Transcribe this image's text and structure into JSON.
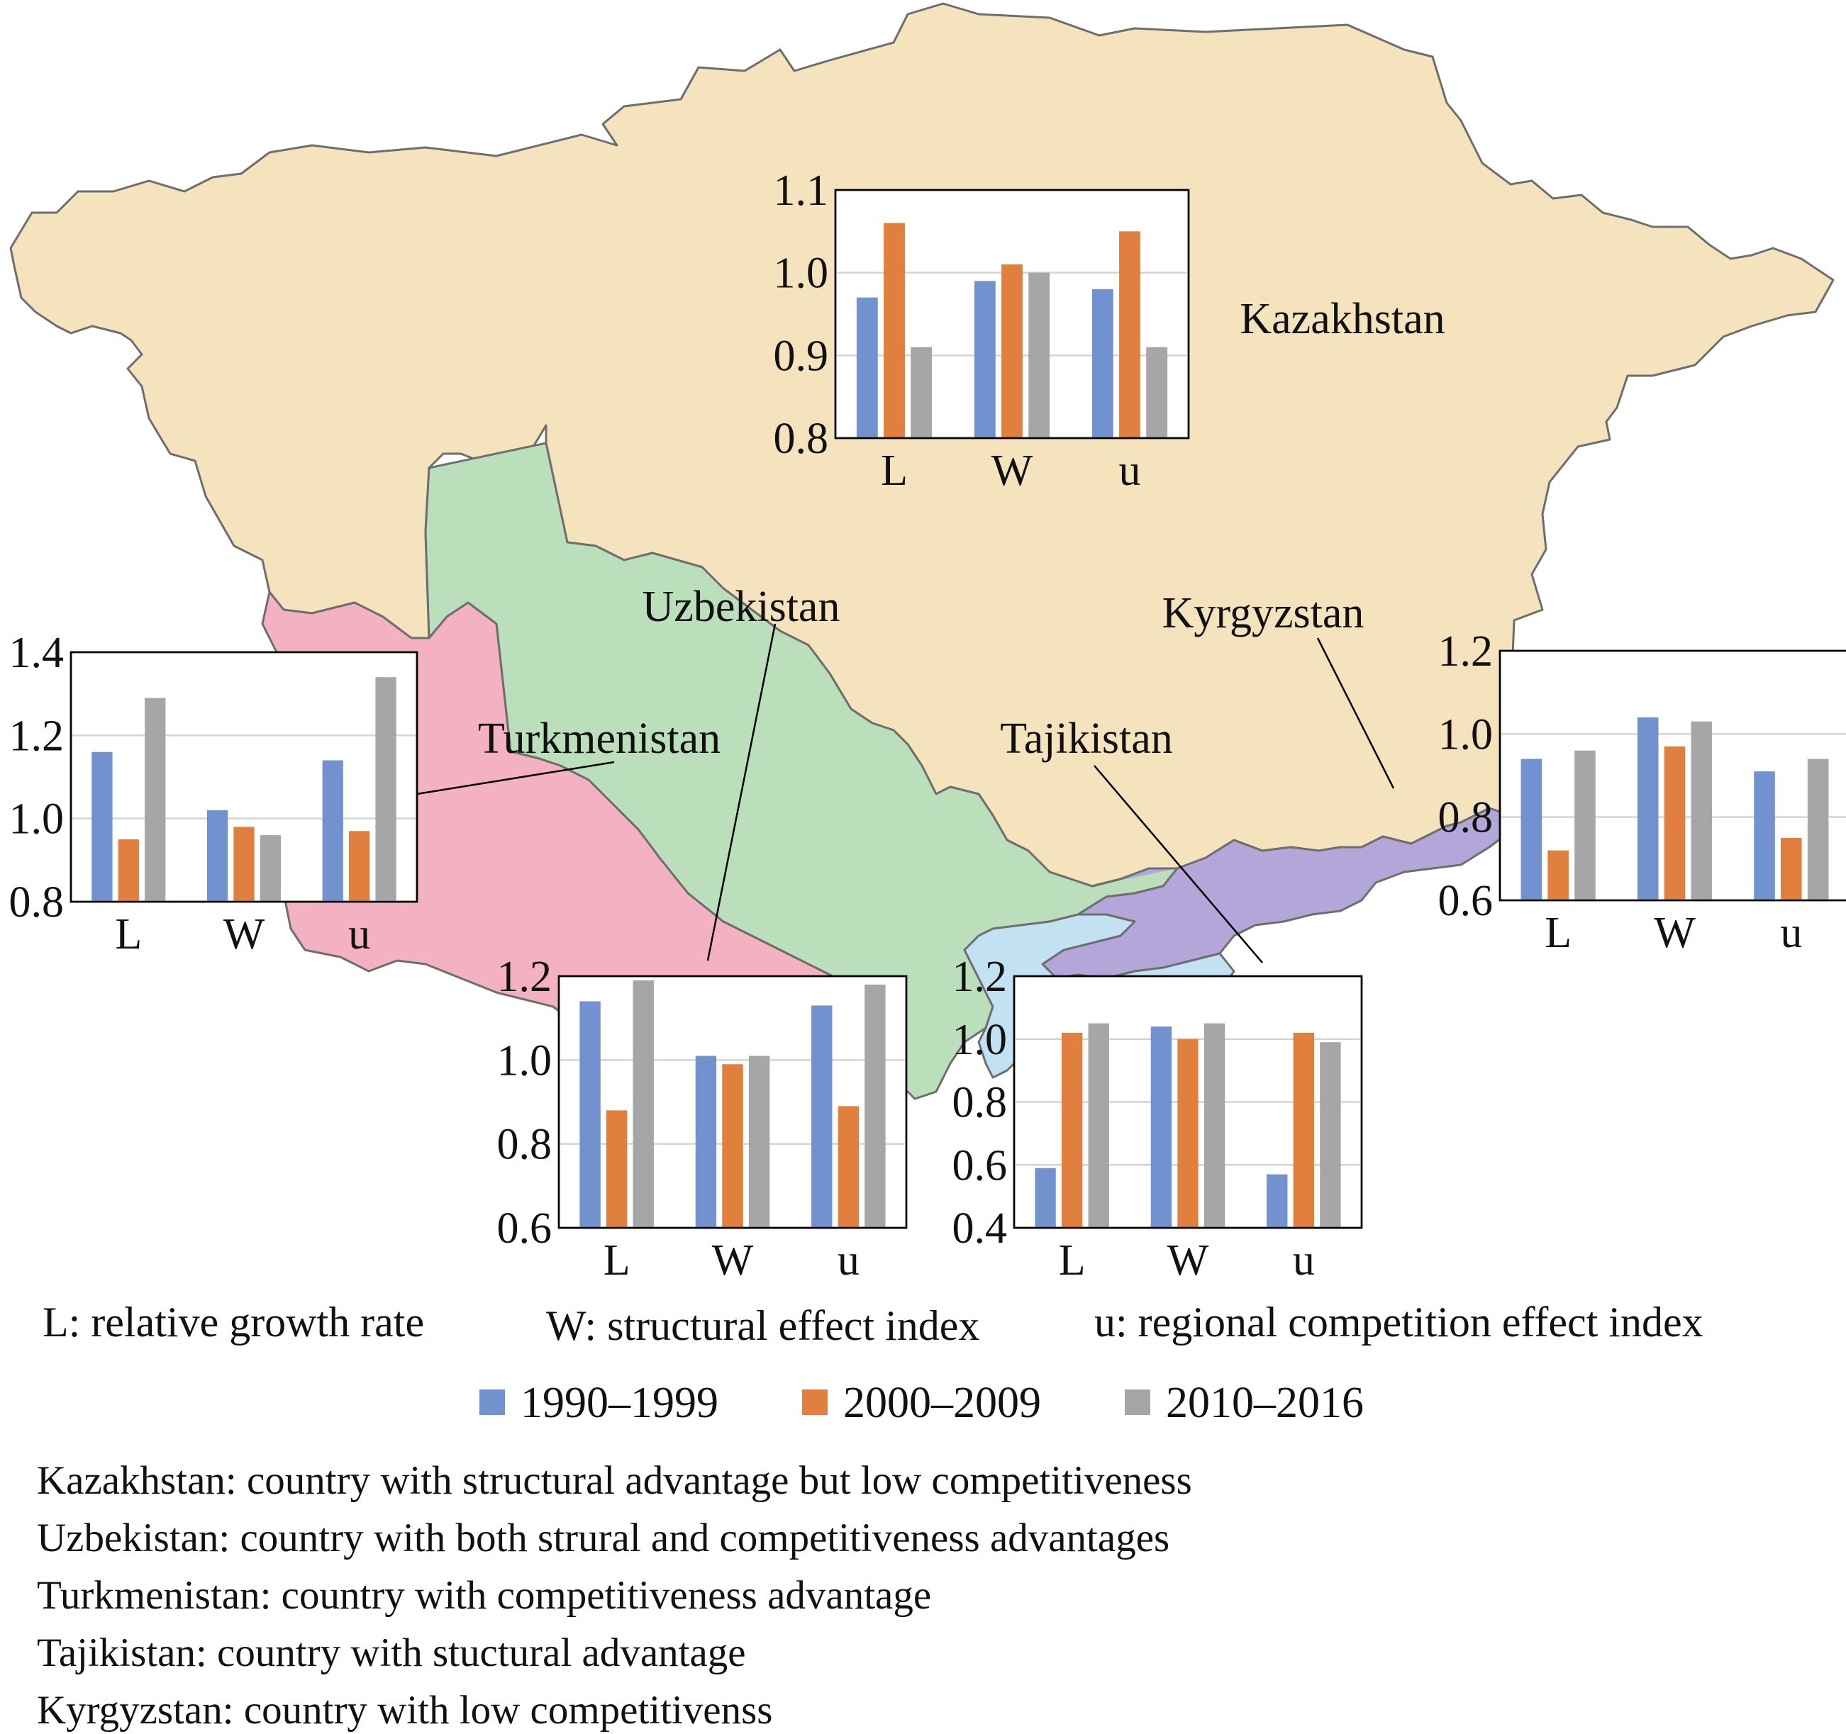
{
  "colors": {
    "series_1990": "#7292cf",
    "series_2000": "#e07f3e",
    "series_2010": "#a6a5a7",
    "kazakhstan": "#f5e3be",
    "uzbekistan": "#bcdfbb",
    "turkmenistan": "#f3b1c2",
    "tajikistan": "#c2e2f4",
    "kyrgyzstan": "#b3a6d8"
  },
  "map": {
    "labels": {
      "kazakhstan": "Kazakhstan",
      "uzbekistan": "Uzbekistan",
      "turkmenistan": "Turkmenistan",
      "tajikistan": "Tajikistan",
      "kyrgyzstan": "Kyrgyzstan"
    }
  },
  "chart_data": [
    {
      "type": "bar",
      "country": "Kazakhstan",
      "categories": [
        "L",
        "W",
        "u"
      ],
      "ylim": [
        0.8,
        1.1
      ],
      "yticks": [
        "0.8",
        "0.9",
        "1.0",
        "1.1"
      ],
      "series": [
        {
          "name": "1990–1999",
          "values": [
            0.97,
            0.99,
            0.98
          ]
        },
        {
          "name": "2000–2009",
          "values": [
            1.06,
            1.01,
            1.05
          ]
        },
        {
          "name": "2010–2016",
          "values": [
            0.91,
            1.0,
            0.91
          ]
        }
      ]
    },
    {
      "type": "bar",
      "country": "Turkmenistan",
      "categories": [
        "L",
        "W",
        "u"
      ],
      "ylim": [
        0.8,
        1.4
      ],
      "yticks": [
        "0.8",
        "1.0",
        "1.2",
        "1.4"
      ],
      "series": [
        {
          "name": "1990–1999",
          "values": [
            1.16,
            1.02,
            1.14
          ]
        },
        {
          "name": "2000–2009",
          "values": [
            0.95,
            0.98,
            0.97
          ]
        },
        {
          "name": "2010–2016",
          "values": [
            1.29,
            0.96,
            1.34
          ]
        }
      ]
    },
    {
      "type": "bar",
      "country": "Kyrgyzstan",
      "categories": [
        "L",
        "W",
        "u"
      ],
      "ylim": [
        0.6,
        1.2
      ],
      "yticks": [
        "0.6",
        "0.8",
        "1.0",
        "1.2"
      ],
      "series": [
        {
          "name": "1990–1999",
          "values": [
            0.94,
            1.04,
            0.91
          ]
        },
        {
          "name": "2000–2009",
          "values": [
            0.72,
            0.97,
            0.75
          ]
        },
        {
          "name": "2010–2016",
          "values": [
            0.96,
            1.03,
            0.94
          ]
        }
      ]
    },
    {
      "type": "bar",
      "country": "Uzbekistan",
      "categories": [
        "L",
        "W",
        "u"
      ],
      "ylim": [
        0.6,
        1.2
      ],
      "yticks": [
        "0.6",
        "0.8",
        "1.0",
        "1.2"
      ],
      "series": [
        {
          "name": "1990–1999",
          "values": [
            1.14,
            1.01,
            1.13
          ]
        },
        {
          "name": "2000–2009",
          "values": [
            0.88,
            0.99,
            0.89
          ]
        },
        {
          "name": "2010–2016",
          "values": [
            1.19,
            1.01,
            1.18
          ]
        }
      ]
    },
    {
      "type": "bar",
      "country": "Tajikistan",
      "categories": [
        "L",
        "W",
        "u"
      ],
      "ylim": [
        0.4,
        1.2
      ],
      "yticks": [
        "0.4",
        "0.6",
        "0.8",
        "1.0",
        "1.2"
      ],
      "series": [
        {
          "name": "1990–1999",
          "values": [
            0.59,
            1.04,
            0.57
          ]
        },
        {
          "name": "2000–2009",
          "values": [
            1.02,
            1.0,
            1.02
          ]
        },
        {
          "name": "2010–2016",
          "values": [
            1.05,
            1.05,
            0.99
          ]
        }
      ]
    }
  ],
  "definitions": {
    "L": "L: relative growth rate",
    "W": "W: structural effect index",
    "u": "u: regional competition effect index"
  },
  "legend": [
    "1990–1999",
    "2000–2009",
    "2010–2016"
  ],
  "descriptions": [
    "Kazakhstan: country with structural advantage but low competitiveness",
    "Uzbekistan: country with both strural and competitiveness advantages",
    "Turkmenistan: country with competitiveness advantage",
    "Tajikistan: country with stuctural advantage",
    "Kyrgyzstan: country with low competitivenss"
  ]
}
